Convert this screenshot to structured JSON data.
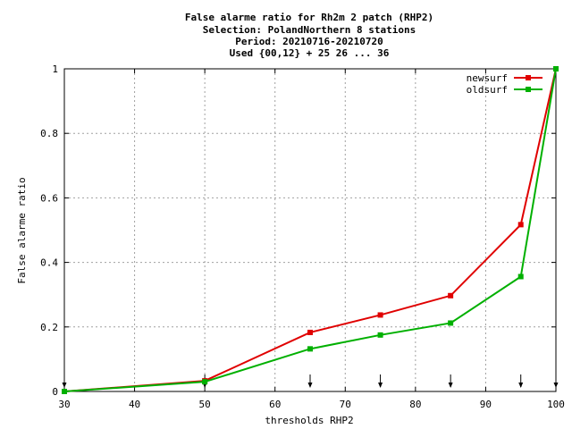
{
  "chart_data": {
    "type": "line",
    "title_lines": [
      "False alarme ratio  for Rh2m 2 patch (RHP2)",
      "Selection: PolandNorthern      8 stations",
      "Period: 20210716-20210720",
      "Used {00,12} + 25 26 ... 36"
    ],
    "xlabel": "thresholds RHP2",
    "ylabel": "False alarme ratio",
    "xlim": [
      30,
      100
    ],
    "ylim": [
      0,
      1
    ],
    "x_ticks": [
      30,
      40,
      50,
      60,
      70,
      80,
      90,
      100
    ],
    "x_tick_labels": [
      "30",
      "40",
      "50",
      "60",
      "70",
      "80",
      "90",
      "100"
    ],
    "y_ticks": [
      0,
      0.2,
      0.4,
      0.6,
      0.8,
      1
    ],
    "y_tick_labels": [
      "0",
      "0.2",
      "0.4",
      "0.6",
      "0.8",
      "1"
    ],
    "grid": true,
    "legend_position": "top-right",
    "threshold_markers": [
      30,
      50,
      65,
      75,
      85,
      95,
      100
    ],
    "series": [
      {
        "name": "newsurf",
        "color": "#e00000",
        "x": [
          30,
          50,
          65,
          75,
          85,
          95,
          100
        ],
        "y": [
          0.0,
          0.033,
          0.183,
          0.237,
          0.297,
          0.517,
          1.0
        ]
      },
      {
        "name": "oldsurf",
        "color": "#00b000",
        "x": [
          30,
          50,
          65,
          75,
          85,
          95,
          100
        ],
        "y": [
          0.0,
          0.03,
          0.132,
          0.175,
          0.212,
          0.356,
          1.0
        ]
      }
    ]
  }
}
